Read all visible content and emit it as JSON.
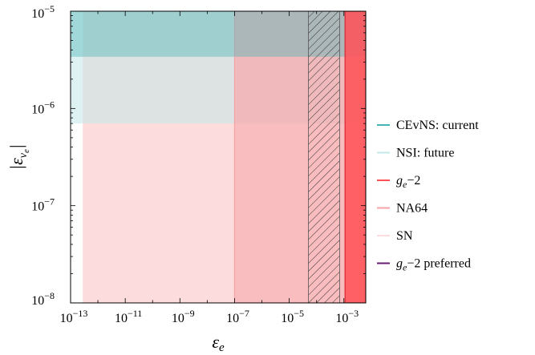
{
  "chart_data": {
    "type": "area",
    "title": "",
    "xlabel": "ε_e",
    "ylabel": "|ε_νe|",
    "x_scale": "log",
    "y_scale": "log",
    "xlim": [
      1e-13,
      0.0063
    ],
    "ylim": [
      1e-08,
      1e-05
    ],
    "x_ticks": [
      {
        "value": 1e-13,
        "base": "10",
        "exp": "−13"
      },
      {
        "value": 1e-11,
        "base": "10",
        "exp": "−11"
      },
      {
        "value": 1e-09,
        "base": "10",
        "exp": "−9"
      },
      {
        "value": 1e-07,
        "base": "10",
        "exp": "−7"
      },
      {
        "value": 1e-05,
        "base": "10",
        "exp": "−5"
      },
      {
        "value": 0.001,
        "base": "10",
        "exp": "−3"
      }
    ],
    "y_ticks": [
      {
        "value": 1e-08,
        "base": "10",
        "exp": "−8"
      },
      {
        "value": 1e-07,
        "base": "10",
        "exp": "−7"
      },
      {
        "value": 1e-06,
        "base": "10",
        "exp": "−6"
      },
      {
        "value": 1e-05,
        "base": "10",
        "exp": "−5"
      }
    ],
    "grid": false,
    "legend_position": "right",
    "series": [
      {
        "key": "sn",
        "name": "SN",
        "color": "#fcdcdc",
        "region": {
          "x": [
            2.8e-13,
            1e-07
          ],
          "y": [
            1e-08,
            1e-05
          ]
        }
      },
      {
        "key": "nsi",
        "name": "NSI: future",
        "color": "#c3e8ea",
        "region": {
          "x": [
            1e-13,
            0.0063
          ],
          "y": [
            7e-07,
            1e-05
          ]
        }
      },
      {
        "key": "na64",
        "name": "NA64",
        "color": "#f6a3a8",
        "region": {
          "x": [
            1e-07,
            0.0063
          ],
          "y": [
            1e-08,
            1e-05
          ]
        }
      },
      {
        "key": "cevns",
        "name": "CEvNS: current",
        "color": "#45b5b5",
        "region": {
          "x": [
            1e-13,
            0.0063
          ],
          "y": [
            3.4e-06,
            1e-05
          ]
        }
      },
      {
        "key": "gm2",
        "name": "g_e−2",
        "color": "#ff5055",
        "region": {
          "x": [
            0.0011,
            0.0063
          ],
          "y": [
            1e-08,
            1e-05
          ]
        }
      },
      {
        "key": "gm2pref",
        "name": "g_e−2 preferred",
        "color": "#6a1a73",
        "region": {
          "x": [
            5e-05,
            0.0007
          ],
          "y": [
            1e-08,
            1e-05
          ]
        }
      }
    ],
    "legend": [
      {
        "key": "cevns",
        "base": "CEvNS: current",
        "sub": "",
        "rest": ""
      },
      {
        "key": "nsi",
        "base": "NSI: future",
        "sub": "",
        "rest": ""
      },
      {
        "key": "gm2",
        "base": "g",
        "sub": "e",
        "rest": "−2"
      },
      {
        "key": "na64",
        "base": "NA64",
        "sub": "",
        "rest": ""
      },
      {
        "key": "sn",
        "base": "SN",
        "sub": "",
        "rest": ""
      },
      {
        "key": "gm2pref",
        "base": "g",
        "sub": "e",
        "rest": "−2 preferred"
      }
    ]
  }
}
